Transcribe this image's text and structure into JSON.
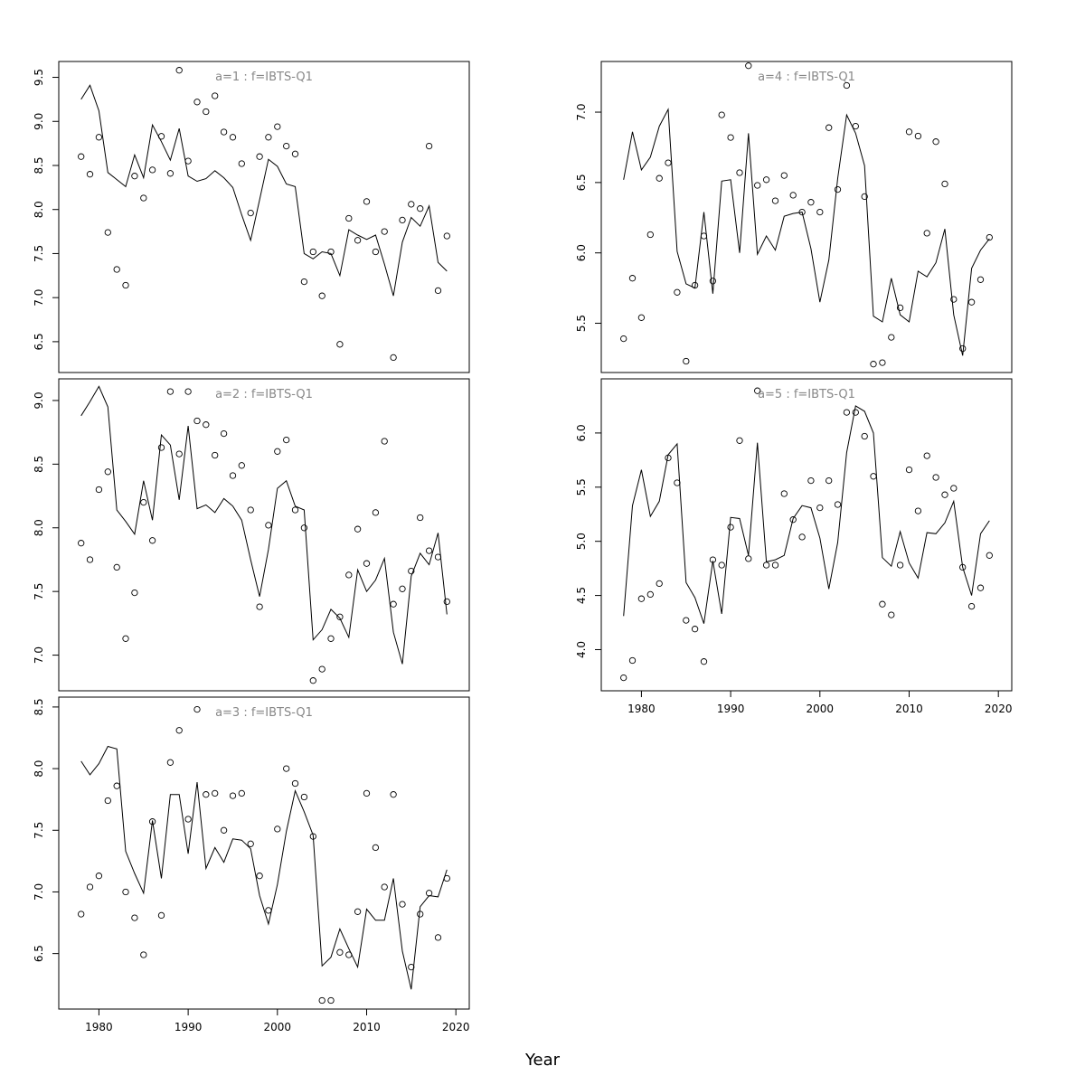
{
  "figure": {
    "xlabel": "Year"
  },
  "chart_data": [
    {
      "type": "line",
      "title": "a=1  :  f=IBTS-Q1",
      "xlabel": "",
      "ylabel": "",
      "xlim": [
        1975.5,
        2021.5
      ],
      "ylim": [
        6.15,
        9.68
      ],
      "x_ticks": [
        1980,
        1990,
        2000,
        2010,
        2020
      ],
      "y_ticks": [
        6.5,
        7.0,
        7.5,
        8.0,
        8.5,
        9.0,
        9.5
      ],
      "y_tick_labels": [
        "6.5",
        "7.0",
        "7.5",
        "8.0",
        "8.5",
        "9.0",
        "9.5"
      ],
      "show_x_axis": false,
      "x": [
        1978,
        1979,
        1980,
        1981,
        1982,
        1983,
        1984,
        1985,
        1986,
        1987,
        1988,
        1989,
        1990,
        1991,
        1992,
        1993,
        1994,
        1995,
        1996,
        1997,
        1998,
        1999,
        2000,
        2001,
        2002,
        2003,
        2004,
        2005,
        2006,
        2007,
        2008,
        2009,
        2010,
        2011,
        2012,
        2013,
        2014,
        2015,
        2016,
        2017,
        2018,
        2019
      ],
      "series": [
        {
          "type": "line",
          "values": [
            9.25,
            9.41,
            9.12,
            8.42,
            8.34,
            8.26,
            8.62,
            8.36,
            8.96,
            8.77,
            8.56,
            8.92,
            8.38,
            8.32,
            8.35,
            8.44,
            8.36,
            8.25,
            7.94,
            7.65,
            8.11,
            8.57,
            8.49,
            8.29,
            8.26,
            7.5,
            7.44,
            7.52,
            7.5,
            7.25,
            7.77,
            7.71,
            7.66,
            7.71,
            7.38,
            7.02,
            7.63,
            7.91,
            7.81,
            8.04,
            7.4,
            7.3
          ]
        },
        {
          "type": "scatter",
          "values": [
            8.6,
            8.4,
            8.82,
            7.74,
            7.32,
            7.14,
            8.38,
            8.13,
            8.45,
            8.83,
            8.41,
            9.58,
            8.55,
            9.22,
            9.11,
            9.29,
            8.88,
            8.82,
            8.52,
            7.96,
            8.6,
            8.82,
            8.94,
            8.72,
            8.63,
            7.18,
            7.52,
            7.02,
            7.52,
            6.47,
            7.9,
            7.65,
            8.09,
            7.52,
            7.75,
            6.32,
            7.88,
            8.06,
            8.01,
            8.72,
            7.08,
            7.7
          ]
        }
      ]
    },
    {
      "type": "line",
      "title": "a=2  :  f=IBTS-Q1",
      "xlabel": "",
      "ylabel": "",
      "xlim": [
        1975.5,
        2021.5
      ],
      "ylim": [
        6.72,
        9.17
      ],
      "x_ticks": [
        1980,
        1990,
        2000,
        2010,
        2020
      ],
      "y_ticks": [
        7.0,
        7.5,
        8.0,
        8.5,
        9.0
      ],
      "y_tick_labels": [
        "7.0",
        "7.5",
        "8.0",
        "8.5",
        "9.0"
      ],
      "show_x_axis": false,
      "x": [
        1978,
        1979,
        1980,
        1981,
        1982,
        1983,
        1984,
        1985,
        1986,
        1987,
        1988,
        1989,
        1990,
        1991,
        1992,
        1993,
        1994,
        1995,
        1996,
        1997,
        1998,
        1999,
        2000,
        2001,
        2002,
        2003,
        2004,
        2005,
        2006,
        2007,
        2008,
        2009,
        2010,
        2011,
        2012,
        2013,
        2014,
        2015,
        2016,
        2017,
        2018,
        2019
      ],
      "series": [
        {
          "type": "line",
          "values": [
            8.88,
            8.99,
            9.11,
            8.95,
            8.14,
            8.05,
            7.95,
            8.37,
            8.06,
            8.73,
            8.65,
            8.22,
            8.8,
            8.15,
            8.18,
            8.12,
            8.23,
            8.17,
            8.06,
            7.75,
            7.46,
            7.83,
            8.31,
            8.37,
            8.17,
            8.14,
            7.12,
            7.2,
            7.36,
            7.29,
            7.14,
            7.67,
            7.5,
            7.59,
            7.76,
            7.18,
            6.93,
            7.62,
            7.8,
            7.71,
            7.96,
            7.32
          ]
        },
        {
          "type": "scatter",
          "values": [
            7.88,
            7.75,
            8.3,
            8.44,
            7.69,
            7.13,
            7.49,
            8.2,
            7.9,
            8.63,
            9.07,
            8.58,
            9.07,
            8.84,
            8.81,
            8.57,
            8.74,
            8.41,
            8.49,
            8.14,
            7.38,
            8.02,
            8.6,
            8.69,
            8.14,
            8.0,
            6.8,
            6.89,
            7.13,
            7.3,
            7.63,
            7.99,
            7.72,
            8.12,
            8.68,
            7.4,
            7.52,
            7.66,
            8.08,
            7.82,
            7.77,
            7.42
          ]
        }
      ]
    },
    {
      "type": "line",
      "title": "a=3  :  f=IBTS-Q1",
      "xlabel": "",
      "ylabel": "",
      "xlim": [
        1975.5,
        2021.5
      ],
      "ylim": [
        6.05,
        8.58
      ],
      "x_ticks": [
        1980,
        1990,
        2000,
        2010,
        2020
      ],
      "x_tick_labels": [
        "1980",
        "1990",
        "2000",
        "2010",
        "2020"
      ],
      "y_ticks": [
        6.5,
        7.0,
        7.5,
        8.0,
        8.5
      ],
      "y_tick_labels": [
        "6.5",
        "7.0",
        "7.5",
        "8.0",
        "8.5"
      ],
      "show_x_axis": true,
      "x": [
        1978,
        1979,
        1980,
        1981,
        1982,
        1983,
        1984,
        1985,
        1986,
        1987,
        1988,
        1989,
        1990,
        1991,
        1992,
        1993,
        1994,
        1995,
        1996,
        1997,
        1998,
        1999,
        2000,
        2001,
        2002,
        2003,
        2004,
        2005,
        2006,
        2007,
        2008,
        2009,
        2010,
        2011,
        2012,
        2013,
        2014,
        2015,
        2016,
        2017,
        2018,
        2019
      ],
      "series": [
        {
          "type": "line",
          "values": [
            8.06,
            7.95,
            8.04,
            8.18,
            8.16,
            7.33,
            7.15,
            6.99,
            7.58,
            7.11,
            7.79,
            7.79,
            7.31,
            7.89,
            7.19,
            7.36,
            7.24,
            7.43,
            7.42,
            7.35,
            6.97,
            6.74,
            7.06,
            7.49,
            7.82,
            7.65,
            7.46,
            6.4,
            6.47,
            6.7,
            6.54,
            6.39,
            6.86,
            6.77,
            6.77,
            7.11,
            6.52,
            6.21,
            6.88,
            6.97,
            6.96,
            7.18
          ]
        },
        {
          "type": "scatter",
          "values": [
            6.82,
            7.04,
            7.13,
            7.74,
            7.86,
            7.0,
            6.79,
            6.49,
            7.57,
            6.81,
            8.05,
            8.31,
            7.59,
            8.48,
            7.79,
            7.8,
            7.5,
            7.78,
            7.8,
            7.39,
            7.13,
            6.85,
            7.51,
            8.0,
            7.88,
            7.77,
            7.45,
            6.12,
            6.12,
            6.51,
            6.49,
            6.84,
            7.8,
            7.36,
            7.04,
            7.79,
            6.9,
            6.39,
            6.82,
            6.99,
            6.63,
            7.11
          ]
        }
      ]
    },
    {
      "type": "line",
      "title": "a=4  :  f=IBTS-Q1",
      "xlabel": "",
      "ylabel": "",
      "xlim": [
        1975.5,
        2021.5
      ],
      "ylim": [
        5.15,
        7.36
      ],
      "x_ticks": [
        1980,
        1990,
        2000,
        2010,
        2020
      ],
      "y_ticks": [
        5.5,
        6.0,
        6.5,
        7.0
      ],
      "y_tick_labels": [
        "5.5",
        "6.0",
        "6.5",
        "7.0"
      ],
      "show_x_axis": false,
      "x": [
        1978,
        1979,
        1980,
        1981,
        1982,
        1983,
        1984,
        1985,
        1986,
        1987,
        1988,
        1989,
        1990,
        1991,
        1992,
        1993,
        1994,
        1995,
        1996,
        1997,
        1998,
        1999,
        2000,
        2001,
        2002,
        2003,
        2004,
        2005,
        2006,
        2007,
        2008,
        2009,
        2010,
        2011,
        2012,
        2013,
        2014,
        2015,
        2016,
        2017,
        2018,
        2019
      ],
      "series": [
        {
          "type": "line",
          "values": [
            6.52,
            6.86,
            6.59,
            6.68,
            6.9,
            7.02,
            6.01,
            5.78,
            5.75,
            6.29,
            5.71,
            6.51,
            6.52,
            6.0,
            6.85,
            5.99,
            6.12,
            6.02,
            6.26,
            6.28,
            6.29,
            6.03,
            5.65,
            5.95,
            6.53,
            6.98,
            6.85,
            6.62,
            5.55,
            5.51,
            5.82,
            5.56,
            5.51,
            5.87,
            5.83,
            5.93,
            6.17,
            5.56,
            5.27,
            5.89,
            6.02,
            6.1
          ]
        },
        {
          "type": "scatter",
          "values": [
            5.39,
            5.82,
            5.54,
            6.13,
            6.53,
            6.64,
            5.72,
            5.23,
            5.77,
            6.12,
            5.8,
            6.98,
            6.82,
            6.57,
            7.33,
            6.48,
            6.52,
            6.37,
            6.55,
            6.41,
            6.29,
            6.36,
            6.29,
            6.89,
            6.45,
            7.19,
            6.9,
            6.4,
            5.21,
            5.22,
            5.4,
            5.61,
            6.86,
            6.83,
            6.14,
            6.79,
            6.49,
            5.67,
            5.32,
            5.65,
            5.81,
            6.11
          ]
        }
      ]
    },
    {
      "type": "line",
      "title": "a=5  :  f=IBTS-Q1",
      "xlabel": "",
      "ylabel": "",
      "xlim": [
        1975.5,
        2021.5
      ],
      "ylim": [
        3.62,
        6.5
      ],
      "x_ticks": [
        1980,
        1990,
        2000,
        2010,
        2020
      ],
      "x_tick_labels": [
        "1980",
        "1990",
        "2000",
        "2010",
        "2020"
      ],
      "y_ticks": [
        4.0,
        4.5,
        5.0,
        5.5,
        6.0
      ],
      "y_tick_labels": [
        "4.0",
        "4.5",
        "5.0",
        "5.5",
        "6.0"
      ],
      "show_x_axis": true,
      "x": [
        1978,
        1979,
        1980,
        1981,
        1982,
        1983,
        1984,
        1985,
        1986,
        1987,
        1988,
        1989,
        1990,
        1991,
        1992,
        1993,
        1994,
        1995,
        1996,
        1997,
        1998,
        1999,
        2000,
        2001,
        2002,
        2003,
        2004,
        2005,
        2006,
        2007,
        2008,
        2009,
        2010,
        2011,
        2012,
        2013,
        2014,
        2015,
        2016,
        2017,
        2018,
        2019
      ],
      "series": [
        {
          "type": "line",
          "values": [
            4.31,
            5.33,
            5.66,
            5.23,
            5.37,
            5.8,
            5.9,
            4.62,
            4.48,
            4.24,
            4.82,
            4.33,
            5.22,
            5.21,
            4.87,
            5.91,
            4.81,
            4.83,
            4.87,
            5.21,
            5.33,
            5.31,
            5.03,
            4.56,
            4.99,
            5.82,
            6.25,
            6.2,
            6.0,
            4.85,
            4.77,
            5.09,
            4.8,
            4.66,
            5.08,
            5.07,
            5.17,
            5.37,
            4.76,
            4.5,
            5.07,
            5.19
          ]
        },
        {
          "type": "scatter",
          "values": [
            3.74,
            3.9,
            4.47,
            4.51,
            4.61,
            5.77,
            5.54,
            4.27,
            4.19,
            3.89,
            4.83,
            4.78,
            5.13,
            5.93,
            4.84,
            6.39,
            4.78,
            4.78,
            5.44,
            5.2,
            5.04,
            5.56,
            5.31,
            5.56,
            5.34,
            6.19,
            6.19,
            5.97,
            5.6,
            4.42,
            4.32,
            4.78,
            5.66,
            5.28,
            5.79,
            5.59,
            5.43,
            5.49,
            4.76,
            4.4,
            4.57,
            4.87
          ]
        }
      ]
    }
  ]
}
